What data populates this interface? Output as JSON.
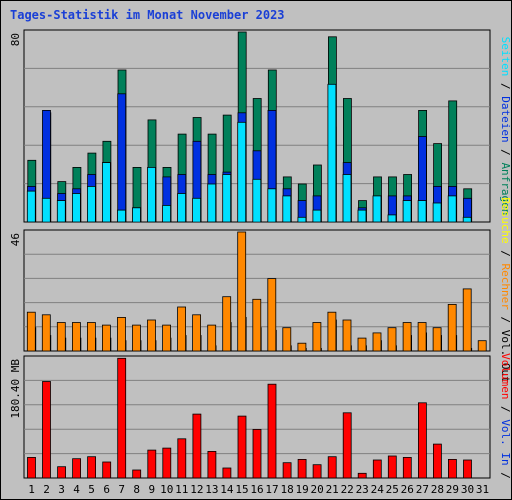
{
  "title": "Tages-Statistik im Monat November 2023",
  "colors": {
    "anfragen": "#00805a",
    "dateien": "#0030e0",
    "seiten": "#00e0ff",
    "besuche": "#ffff00",
    "rechner": "#ff8800",
    "volumen": "#ff0000",
    "weekend": "#1a7a4a",
    "weekday": "#000000"
  },
  "chart_data": [
    {
      "type": "bar",
      "name": "top-panel",
      "max_label": "80",
      "ylim": [
        0,
        80
      ],
      "categories": [
        "1",
        "2",
        "3",
        "4",
        "5",
        "6",
        "7",
        "8",
        "9",
        "10",
        "11",
        "12",
        "13",
        "14",
        "15",
        "16",
        "17",
        "18",
        "19",
        "20",
        "21",
        "22",
        "23",
        "24",
        "25",
        "26",
        "27",
        "28",
        "29",
        "30",
        "31"
      ],
      "weekend": [
        false,
        false,
        false,
        true,
        true,
        false,
        false,
        false,
        false,
        false,
        true,
        true,
        false,
        false,
        false,
        false,
        false,
        true,
        true,
        false,
        false,
        false,
        false,
        true,
        true,
        false,
        false,
        false,
        false,
        false,
        false
      ],
      "series": [
        {
          "name": "Anfragen",
          "color": "#00805a",
          "values": [
            26,
            46,
            17,
            23,
            29,
            34,
            64,
            23,
            43,
            23,
            37,
            44,
            37,
            45,
            80,
            52,
            64,
            19,
            16,
            24,
            78,
            52,
            9,
            19,
            19,
            20,
            47,
            33,
            51,
            14,
            0
          ]
        },
        {
          "name": "Dateien",
          "color": "#0030e0",
          "values": [
            15,
            47,
            12,
            14,
            20,
            25,
            54,
            6,
            17,
            19,
            20,
            34,
            20,
            21,
            46,
            30,
            47,
            14,
            9,
            11,
            40,
            25,
            6,
            11,
            11,
            11,
            36,
            15,
            15,
            10,
            0
          ]
        },
        {
          "name": "Seiten",
          "color": "#00e0ff",
          "values": [
            13,
            10,
            9,
            12,
            15,
            25,
            5,
            6,
            23,
            7,
            12,
            10,
            16,
            20,
            42,
            18,
            14,
            11,
            2,
            5,
            58,
            20,
            5,
            11,
            3,
            9,
            9,
            8,
            11,
            2,
            0
          ]
        }
      ],
      "right_label_parts": [
        {
          "text": "Seiten",
          "color": "#00e0ff"
        },
        {
          "text": " / ",
          "color": "#000000"
        },
        {
          "text": "Dateien",
          "color": "#0030e0"
        },
        {
          "text": " / ",
          "color": "#000000"
        },
        {
          "text": "Anfragen",
          "color": "#00805a"
        }
      ]
    },
    {
      "type": "bar",
      "name": "middle-panel",
      "max_label": "46",
      "ylim": [
        0,
        46
      ],
      "series": [
        {
          "name": "Besuche",
          "color": "#ffff00",
          "values": [
            9,
            6,
            5,
            5,
            5,
            5,
            4,
            4,
            4,
            5,
            6,
            6,
            2,
            11,
            13,
            9,
            8,
            2,
            1,
            1,
            12,
            2,
            2,
            4,
            2,
            6,
            7,
            6,
            6,
            1,
            0
          ]
        },
        {
          "name": "Rechner",
          "color": "#ff8800",
          "values": [
            15,
            14,
            11,
            11,
            11,
            10,
            13,
            10,
            12,
            10,
            17,
            14,
            10,
            21,
            46,
            20,
            28,
            9,
            3,
            11,
            15,
            12,
            5,
            7,
            9,
            11,
            11,
            9,
            18,
            24,
            4
          ]
        }
      ],
      "right_label_parts": [
        {
          "text": "Besuche",
          "color": "#ffff00"
        },
        {
          "text": " / ",
          "color": "#000000"
        },
        {
          "text": "Rechner",
          "color": "#ff8800"
        },
        {
          "text": " / ",
          "color": "#000000"
        },
        {
          "text": "Vol. Out",
          "color": "#000000"
        }
      ]
    },
    {
      "type": "bar",
      "name": "bottom-panel",
      "max_label": "180.40 MB",
      "unit": "MB",
      "ylim": [
        0,
        180.4
      ],
      "series": [
        {
          "name": "Volumen",
          "color": "#ff0000",
          "values": [
            31,
            145,
            17,
            29,
            32,
            24,
            180,
            12,
            42,
            45,
            59,
            96,
            40,
            15,
            93,
            73,
            141,
            23,
            28,
            20,
            32,
            98,
            7,
            27,
            33,
            31,
            113,
            51,
            28,
            27,
            0
          ]
        }
      ],
      "right_label_parts": [
        {
          "text": "Volumen",
          "color": "#ff0000"
        },
        {
          "text": " / ",
          "color": "#000000"
        },
        {
          "text": "Vol. In",
          "color": "#0030e0"
        },
        {
          "text": " / ",
          "color": "#000000"
        }
      ]
    }
  ]
}
